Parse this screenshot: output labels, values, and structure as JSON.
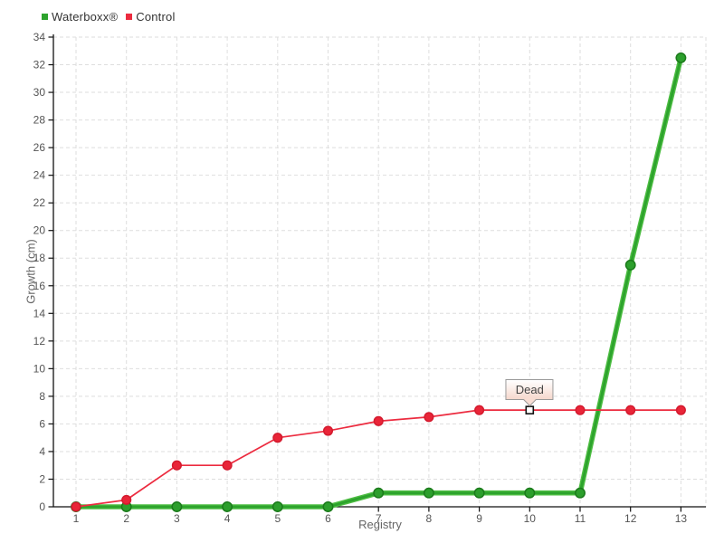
{
  "legend": {
    "items": [
      {
        "label": "Waterboxx®",
        "color": "#2da32d"
      },
      {
        "label": "Control",
        "color": "#ec2b3f"
      }
    ]
  },
  "chart_data": {
    "type": "line",
    "title": "",
    "xlabel": "Registry",
    "ylabel": "Growth (cm)",
    "x": [
      1,
      2,
      3,
      4,
      5,
      6,
      7,
      8,
      9,
      10,
      11,
      12,
      13
    ],
    "series": [
      {
        "name": "Waterboxx®",
        "color": "#2da32d",
        "marker_fill": "#2c9f2c",
        "marker_stroke": "#1b7b1b",
        "line_width": 4,
        "values": [
          0,
          0,
          0,
          0,
          0,
          0,
          1,
          1,
          1,
          1,
          1,
          17.5,
          32.5
        ]
      },
      {
        "name": "Control",
        "color": "#ec2b3f",
        "marker_fill": "#e92538",
        "marker_stroke": "#d41a2e",
        "line_width": 1.7,
        "values": [
          0,
          0.5,
          3,
          3,
          5,
          5.5,
          6.2,
          6.5,
          7,
          7,
          7,
          7,
          7
        ]
      }
    ],
    "xlim": [
      1,
      13
    ],
    "ylim": [
      0,
      34
    ],
    "ytick_step": 2,
    "grid": true,
    "grid_style": "dashed",
    "legend_position": "top-left",
    "annotation": {
      "text": "Dead",
      "series": "Control",
      "x": 10,
      "y": 7,
      "marker": "open-square"
    }
  }
}
